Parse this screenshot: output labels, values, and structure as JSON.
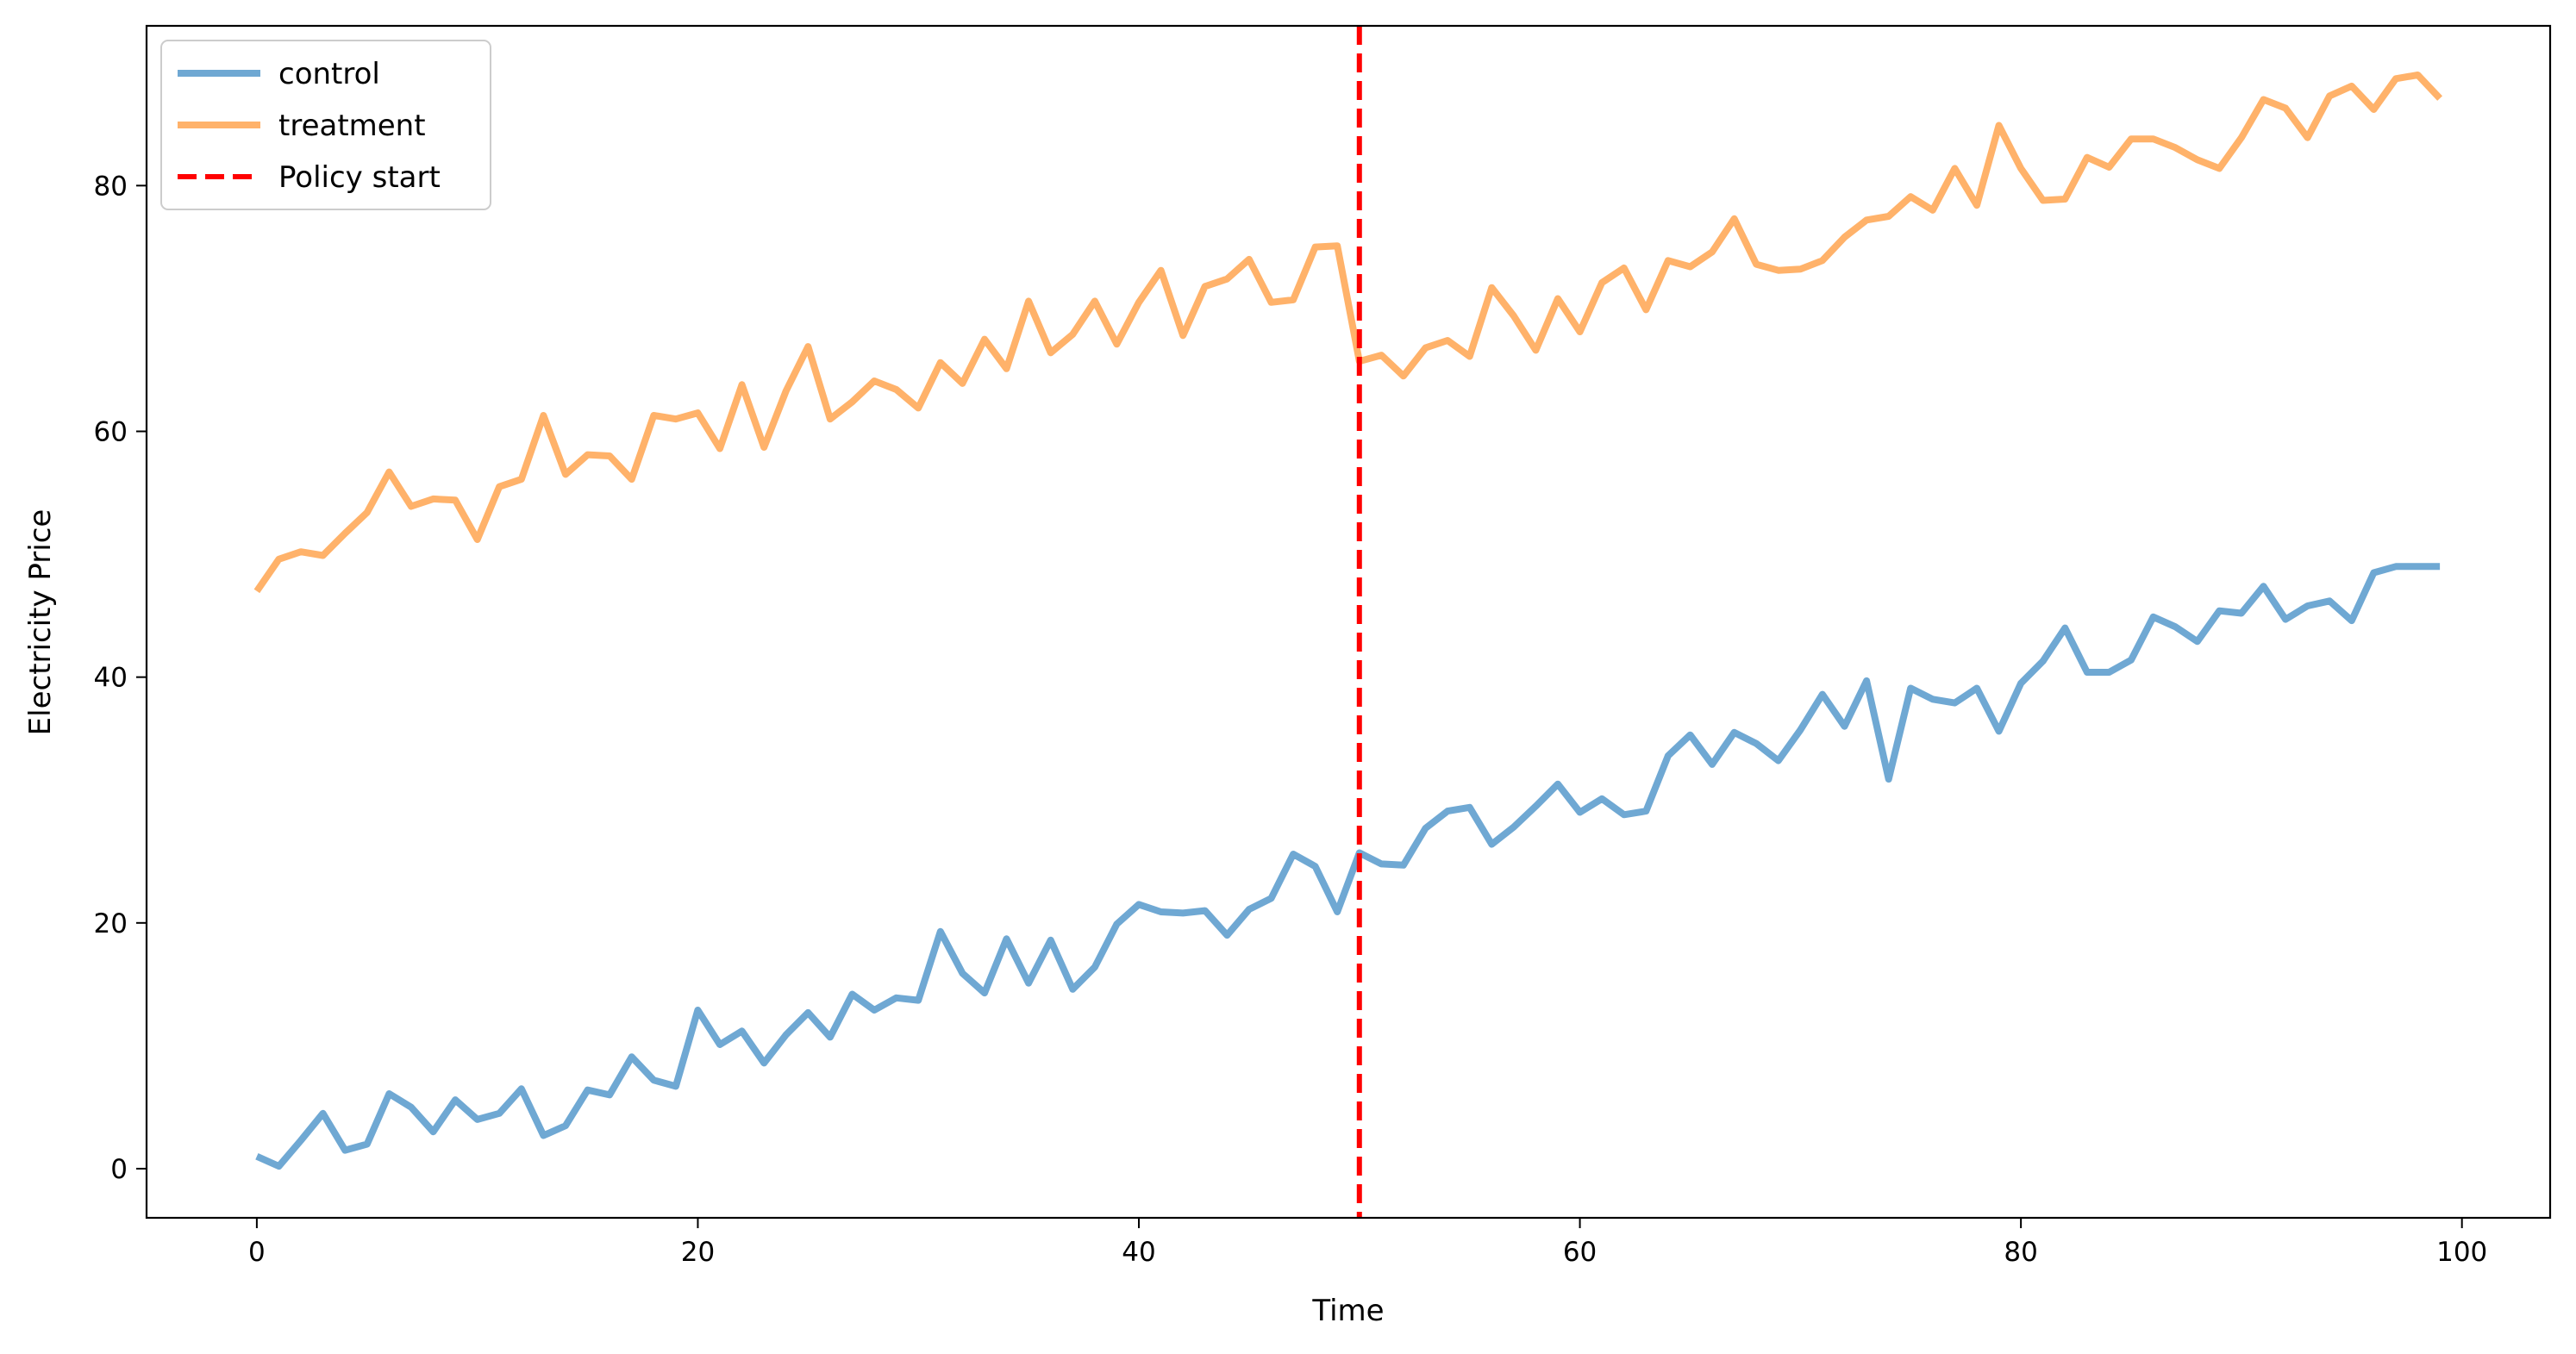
{
  "chart_data": {
    "type": "line",
    "xlabel": "Time",
    "ylabel": "Electricity Price",
    "xlim": [
      -5,
      104
    ],
    "ylim": [
      -4,
      93
    ],
    "xticks": [
      0,
      20,
      40,
      60,
      80,
      100
    ],
    "yticks": [
      0,
      20,
      40,
      60,
      80
    ],
    "grid": false,
    "legend_position": "top-left",
    "x": [
      0,
      1,
      2,
      3,
      4,
      5,
      6,
      7,
      8,
      9,
      10,
      11,
      12,
      13,
      14,
      15,
      16,
      17,
      18,
      19,
      20,
      21,
      22,
      23,
      24,
      25,
      26,
      27,
      28,
      29,
      30,
      31,
      32,
      33,
      34,
      35,
      36,
      37,
      38,
      39,
      40,
      41,
      42,
      43,
      44,
      45,
      46,
      47,
      48,
      49,
      50,
      51,
      52,
      53,
      54,
      55,
      56,
      57,
      58,
      59,
      60,
      61,
      62,
      63,
      64,
      65,
      66,
      67,
      68,
      69,
      70,
      71,
      72,
      73,
      74,
      75,
      76,
      77,
      78,
      79,
      80,
      81,
      82,
      83,
      84,
      85,
      86,
      87,
      88,
      89,
      90,
      91,
      92,
      93,
      94,
      95,
      96,
      97,
      98,
      99
    ],
    "series": [
      {
        "name": "control",
        "color": "#6fa8d3",
        "values": [
          1.0,
          0.2,
          2.3,
          4.5,
          1.5,
          2.0,
          6.1,
          5.0,
          3.0,
          5.6,
          4.0,
          4.5,
          6.5,
          2.7,
          3.5,
          6.4,
          6.0,
          9.1,
          7.2,
          6.7,
          12.9,
          10.1,
          11.2,
          8.6,
          10.9,
          12.7,
          10.7,
          14.2,
          12.9,
          13.9,
          13.7,
          19.3,
          15.9,
          14.3,
          18.7,
          15.1,
          18.6,
          14.6,
          16.4,
          19.9,
          21.5,
          20.9,
          20.8,
          21.0,
          19.0,
          21.1,
          22.0,
          25.6,
          24.6,
          20.9,
          25.7,
          24.8,
          24.7,
          27.7,
          29.1,
          29.4,
          26.4,
          27.8,
          29.5,
          31.3,
          29.0,
          30.1,
          28.8,
          29.1,
          33.6,
          35.3,
          32.9,
          35.5,
          34.6,
          33.2,
          35.7,
          38.6,
          36.0,
          39.7,
          31.7,
          39.1,
          38.2,
          37.9,
          39.1,
          35.6,
          39.5,
          41.3,
          44.0,
          40.4,
          40.4,
          41.4,
          44.9,
          44.1,
          42.9,
          45.4,
          45.2,
          47.4,
          44.7,
          45.8,
          46.2,
          44.6,
          48.5,
          49.0,
          49.0,
          49.0
        ]
      },
      {
        "name": "treatment",
        "color": "#ffb26a",
        "values": [
          47.0,
          49.6,
          50.2,
          49.9,
          51.7,
          53.4,
          56.7,
          53.9,
          54.5,
          54.4,
          51.2,
          55.5,
          56.1,
          61.3,
          56.5,
          58.1,
          58.0,
          56.1,
          61.3,
          61.0,
          61.5,
          58.6,
          63.8,
          58.7,
          63.3,
          66.9,
          61.0,
          62.4,
          64.1,
          63.4,
          61.9,
          65.6,
          63.9,
          67.5,
          65.1,
          70.6,
          66.4,
          67.9,
          70.6,
          67.1,
          70.5,
          73.1,
          67.8,
          71.8,
          72.4,
          74.0,
          70.5,
          70.7,
          75.0,
          75.1,
          65.7,
          66.2,
          64.5,
          66.8,
          67.4,
          66.1,
          71.7,
          69.4,
          66.6,
          70.8,
          68.1,
          72.1,
          73.3,
          69.9,
          73.9,
          73.4,
          74.6,
          77.3,
          73.6,
          73.1,
          73.2,
          73.9,
          75.8,
          77.2,
          77.5,
          79.1,
          78.0,
          81.4,
          78.4,
          84.9,
          81.4,
          78.8,
          78.9,
          82.3,
          81.5,
          83.8,
          83.8,
          83.1,
          82.1,
          81.4,
          83.9,
          87.0,
          86.3,
          83.9,
          87.3,
          88.1,
          86.2,
          88.7,
          89.0,
          87.1
        ]
      }
    ],
    "reference_line": {
      "x": 50,
      "name": "Policy start",
      "color": "#ff0000",
      "style": "dashed"
    }
  }
}
